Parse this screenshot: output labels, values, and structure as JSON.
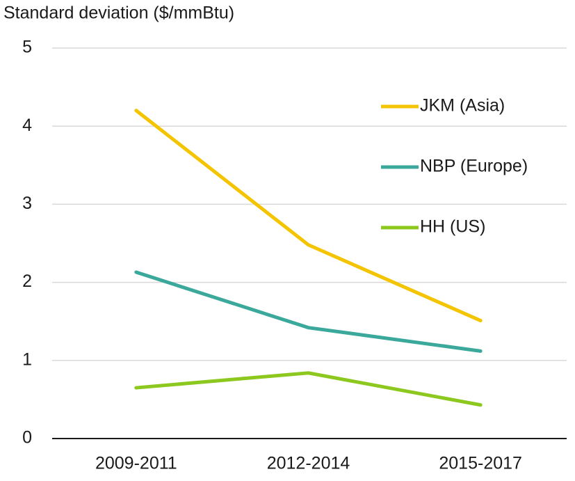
{
  "chart_data": {
    "type": "line",
    "y_label": "Standard deviation ($/mmBtu)",
    "categories": [
      "2009-2011",
      "2012-2014",
      "2015-2017"
    ],
    "series": [
      {
        "name": "JKM (Asia)",
        "color": "#f5c400",
        "values": [
          4.2,
          2.48,
          1.51
        ]
      },
      {
        "name": "NBP (Europe)",
        "color": "#3aa89a",
        "values": [
          2.13,
          1.42,
          1.12
        ]
      },
      {
        "name": "HH (US)",
        "color": "#8cc81e",
        "values": [
          0.65,
          0.84,
          0.43
        ]
      }
    ],
    "ylim": [
      0,
      5
    ],
    "yticks": [
      0,
      1,
      2,
      3,
      4,
      5
    ],
    "grid": true,
    "legend": "upper right"
  }
}
